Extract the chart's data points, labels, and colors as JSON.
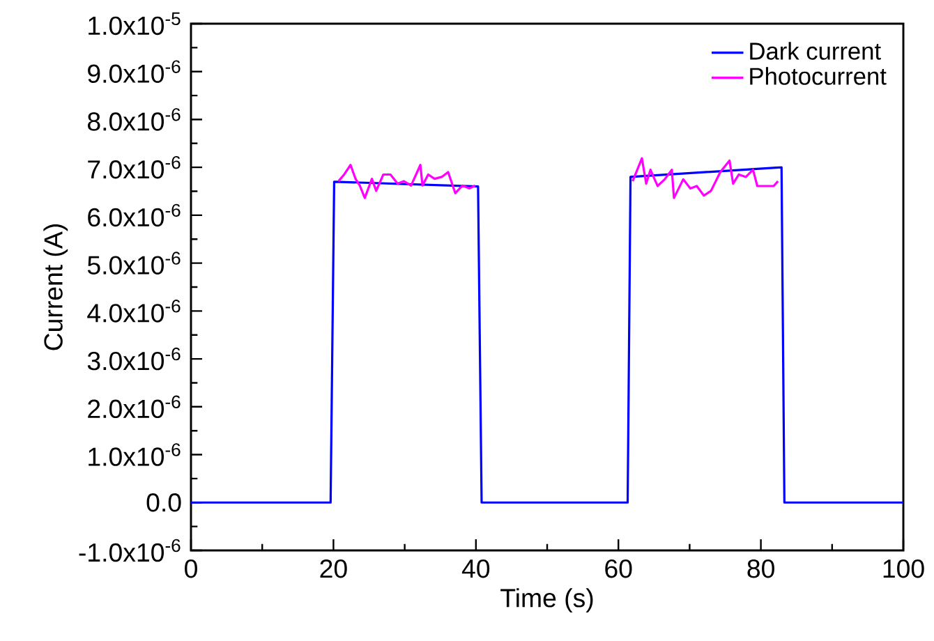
{
  "chart_data": {
    "type": "line",
    "xlabel": "Time (s)",
    "ylabel": "Current (A)",
    "xlim": [
      0,
      100
    ],
    "xticks": [
      0,
      20,
      40,
      60,
      80,
      100
    ],
    "ylim": [
      -1e-06,
      1e-05
    ],
    "yticks": [
      {
        "value": -1e-06,
        "label": "-1.0x10$^{-6}$"
      },
      {
        "value": 0,
        "label": "0.0"
      },
      {
        "value": 1e-06,
        "label": "1.0x10$^{-6}$"
      },
      {
        "value": 2e-06,
        "label": "2.0x10$^{-6}$"
      },
      {
        "value": 3e-06,
        "label": "3.0x10$^{-6}$"
      },
      {
        "value": 4e-06,
        "label": "4.0x10$^{-6}$"
      },
      {
        "value": 5e-06,
        "label": "5.0x10$^{-6}$"
      },
      {
        "value": 6e-06,
        "label": "6.0x10$^{-6}$"
      },
      {
        "value": 7e-06,
        "label": "7.0x10$^{-6}$"
      },
      {
        "value": 8e-06,
        "label": "8.0x10$^{-6}$"
      },
      {
        "value": 9e-06,
        "label": "9.0x10$^{-6}$"
      },
      {
        "value": 1e-05,
        "label": "1.0x10$^{-5}$"
      }
    ],
    "legend": "top right",
    "grid": false,
    "marker": "none",
    "line_style": "solid",
    "series": [
      {
        "name": "Dark current",
        "color": "#0000ff",
        "x": [
          0,
          19.6,
          20.1,
          40.3,
          40.8,
          61.3,
          61.7,
          82.9,
          83.3,
          100
        ],
        "values": [
          0,
          0,
          6.7e-06,
          6.6e-06,
          0,
          0,
          6.8e-06,
          7e-06,
          0,
          0
        ]
      },
      {
        "name": "Photocurrent",
        "color": "#ff00ff",
        "x": [
          20.7,
          21.5,
          22.4,
          23.1,
          23.7,
          24.4,
          25.4,
          26.0,
          27.0,
          28.0,
          29.0,
          29.9,
          30.9,
          32.2,
          32.5,
          33.3,
          34.2,
          35.2,
          36.1,
          37.1,
          38.1,
          39.1,
          39.9,
          null,
          62.0,
          63.3,
          63.9,
          64.5,
          65.5,
          66.5,
          67.5,
          67.8,
          69.1,
          70.1,
          71.0,
          72.0,
          73.0,
          74.3,
          75.6,
          76.1,
          76.9,
          77.9,
          78.9,
          79.5,
          80.5,
          81.8,
          82.4
        ],
        "values": [
          6.71e-06,
          6.85e-06,
          7.05e-06,
          6.76e-06,
          6.62e-06,
          6.36e-06,
          6.76e-06,
          6.51e-06,
          6.85e-06,
          6.85e-06,
          6.66e-06,
          6.71e-06,
          6.62e-06,
          7.05e-06,
          6.62e-06,
          6.85e-06,
          6.76e-06,
          6.8e-06,
          6.9e-06,
          6.46e-06,
          6.62e-06,
          6.56e-06,
          6.62e-06,
          null,
          6.71e-06,
          7.19e-06,
          6.66e-06,
          6.95e-06,
          6.61e-06,
          6.75e-06,
          6.95e-06,
          6.36e-06,
          6.75e-06,
          6.56e-06,
          6.61e-06,
          6.41e-06,
          6.51e-06,
          6.9e-06,
          7.14e-06,
          6.66e-06,
          6.85e-06,
          6.8e-06,
          6.95e-06,
          6.61e-06,
          6.61e-06,
          6.61e-06,
          6.71e-06
        ]
      }
    ]
  }
}
